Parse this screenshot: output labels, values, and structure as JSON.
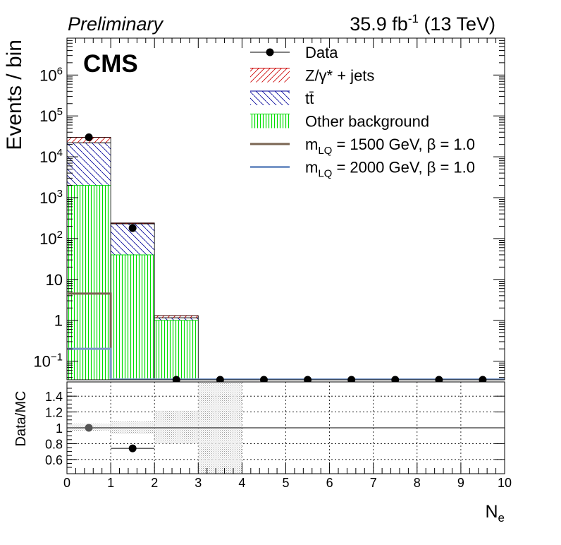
{
  "chart_data": [
    {
      "type": "bar",
      "panel": "main",
      "header_left": "Preliminary",
      "header_right": {
        "lumi": "35.9 fb",
        "exp": "-1",
        "energy": " (13 TeV)"
      },
      "experiment": "CMS",
      "ylabel": "Events / bin",
      "yscale": "log",
      "ylim": [
        0.035,
        8000000
      ],
      "xlim": [
        0,
        10
      ],
      "y_tick_labels": [
        {
          "value": 0.1,
          "base": "10",
          "exp": "−1"
        },
        {
          "value": 1,
          "text": "1"
        },
        {
          "value": 10,
          "text": "10"
        },
        {
          "value": 100,
          "base": "10",
          "exp": "2"
        },
        {
          "value": 1000,
          "base": "10",
          "exp": "3"
        },
        {
          "value": 10000,
          "base": "10",
          "exp": "4"
        },
        {
          "value": 100000,
          "base": "10",
          "exp": "5"
        },
        {
          "value": 1000000,
          "base": "10",
          "exp": "6"
        }
      ],
      "bins": [
        [
          0,
          1
        ],
        [
          1,
          2
        ],
        [
          2,
          3
        ],
        [
          3,
          4
        ],
        [
          4,
          5
        ],
        [
          5,
          6
        ],
        [
          6,
          7
        ],
        [
          7,
          8
        ],
        [
          8,
          9
        ],
        [
          9,
          10
        ]
      ],
      "stack": [
        {
          "name": "Other background",
          "color": "#00dd00",
          "values": [
            2000,
            40,
            1.0,
            0,
            0,
            0,
            0,
            0,
            0,
            0
          ]
        },
        {
          "name": "tt̄",
          "color": "#000099",
          "values": [
            20000,
            190,
            0.15,
            0,
            0,
            0,
            0,
            0,
            0,
            0
          ]
        },
        {
          "name": "Z/γ* + jets",
          "color": "#cc0000",
          "values": [
            8000,
            10,
            0.15,
            0,
            0,
            0,
            0,
            0,
            0,
            0
          ]
        }
      ],
      "signals": [
        {
          "name": "mLQ = 1500 GeV, β = 1.0",
          "color": "#7a6552",
          "values": [
            4.5,
            0,
            0,
            0,
            0,
            0,
            0,
            0,
            0,
            0
          ]
        },
        {
          "name": "mLQ = 2000 GeV, β = 1.0",
          "color": "#7a98c8",
          "values": [
            0.2,
            0,
            0,
            0,
            0,
            0,
            0,
            0,
            0,
            0
          ]
        }
      ],
      "data": {
        "name": "Data",
        "x": [
          0.5,
          1.5,
          2.5,
          3.5,
          4.5,
          5.5,
          6.5,
          7.5,
          8.5,
          9.5
        ],
        "y": [
          30000,
          180,
          0,
          0,
          0,
          0,
          0,
          0,
          0,
          0
        ]
      },
      "legend": [
        {
          "label": "Data",
          "style": "data"
        },
        {
          "label": "Z/γ* + jets",
          "style": "hatch-red"
        },
        {
          "label": "tt̄",
          "style": "hatch-blue"
        },
        {
          "label": "Other background",
          "style": "vert-green"
        },
        {
          "label_base": "m",
          "label_sub": "LQ",
          "label_rest": " = 1500 GeV, β = 1.0",
          "style": "line",
          "color": "#7a6552"
        },
        {
          "label_base": "m",
          "label_sub": "LQ",
          "label_rest": " = 2000 GeV, β = 1.0",
          "style": "line",
          "color": "#7a98c8"
        }
      ],
      "legend_position": "top-right"
    },
    {
      "type": "scatter",
      "panel": "ratio",
      "ylabel": "Data/MC",
      "xlabel_base": "N",
      "xlabel_sub": "e",
      "ylim": [
        0.42,
        1.58
      ],
      "xlim": [
        0,
        10
      ],
      "y_ticks": [
        0.6,
        0.8,
        1,
        1.2,
        1.4
      ],
      "y_tick_labels": [
        "0.6",
        "0.8",
        "1",
        "1.2",
        "1.4"
      ],
      "x_ticks": [
        0,
        1,
        2,
        3,
        4,
        5,
        6,
        7,
        8,
        9,
        10
      ],
      "x_tick_labels": [
        "0",
        "1",
        "2",
        "3",
        "4",
        "5",
        "6",
        "7",
        "8",
        "9",
        "10"
      ],
      "grid": true,
      "reference_line": 1,
      "points": [
        {
          "x": 0.5,
          "y": 1.0
        },
        {
          "x": 1.5,
          "y": 0.74
        }
      ],
      "uncertainty_bands": [
        {
          "bin": [
            0,
            1
          ],
          "low": 0.96,
          "high": 1.05
        },
        {
          "bin": [
            1,
            2
          ],
          "low": 0.92,
          "high": 1.08
        },
        {
          "bin": [
            2,
            3
          ],
          "low": 0.8,
          "high": 1.22
        },
        {
          "bin": [
            3,
            4
          ],
          "low": 0.42,
          "high": 1.58
        }
      ]
    }
  ]
}
